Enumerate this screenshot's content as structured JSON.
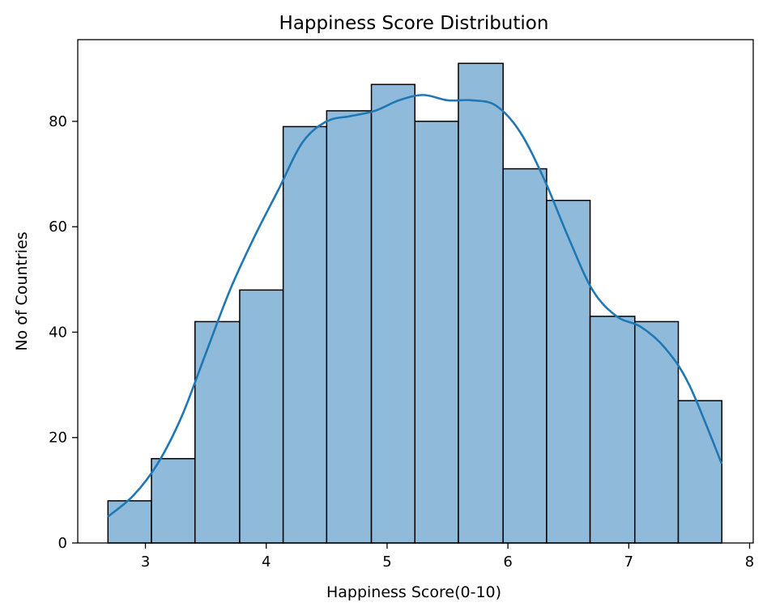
{
  "chart_data": {
    "type": "bar",
    "title": "Happiness Score Distribution",
    "xlabel": "Happiness Score(0-10)",
    "ylabel": "No of Countries",
    "xlim": [
      2.44,
      8.03
    ],
    "ylim": [
      0,
      95.5
    ],
    "xticks": [
      3,
      4,
      5,
      6,
      7,
      8
    ],
    "yticks": [
      0,
      20,
      40,
      60,
      80
    ],
    "bin_edges": [
      2.69,
      3.05,
      3.41,
      3.78,
      4.14,
      4.5,
      4.87,
      5.23,
      5.59,
      5.96,
      6.32,
      6.68,
      7.05,
      7.41,
      7.77
    ],
    "values": [
      8,
      16,
      42,
      48,
      79,
      82,
      87,
      80,
      91,
      71,
      65,
      43,
      42,
      27
    ],
    "bar_color": "#8fbad9",
    "edge_color": "#000000",
    "kde": {
      "color": "#1f77b4",
      "x": [
        2.69,
        2.9,
        3.1,
        3.3,
        3.5,
        3.7,
        3.9,
        4.1,
        4.3,
        4.5,
        4.7,
        4.9,
        5.1,
        5.3,
        5.5,
        5.7,
        5.9,
        6.1,
        6.3,
        6.5,
        6.7,
        6.9,
        7.1,
        7.3,
        7.5,
        7.77
      ],
      "y": [
        5,
        9,
        15,
        24,
        36,
        48,
        58,
        67,
        76,
        80,
        81,
        82,
        84,
        85,
        84,
        84,
        83,
        78,
        69,
        58,
        48,
        43,
        41,
        37,
        30,
        15
      ]
    },
    "grid": false
  }
}
